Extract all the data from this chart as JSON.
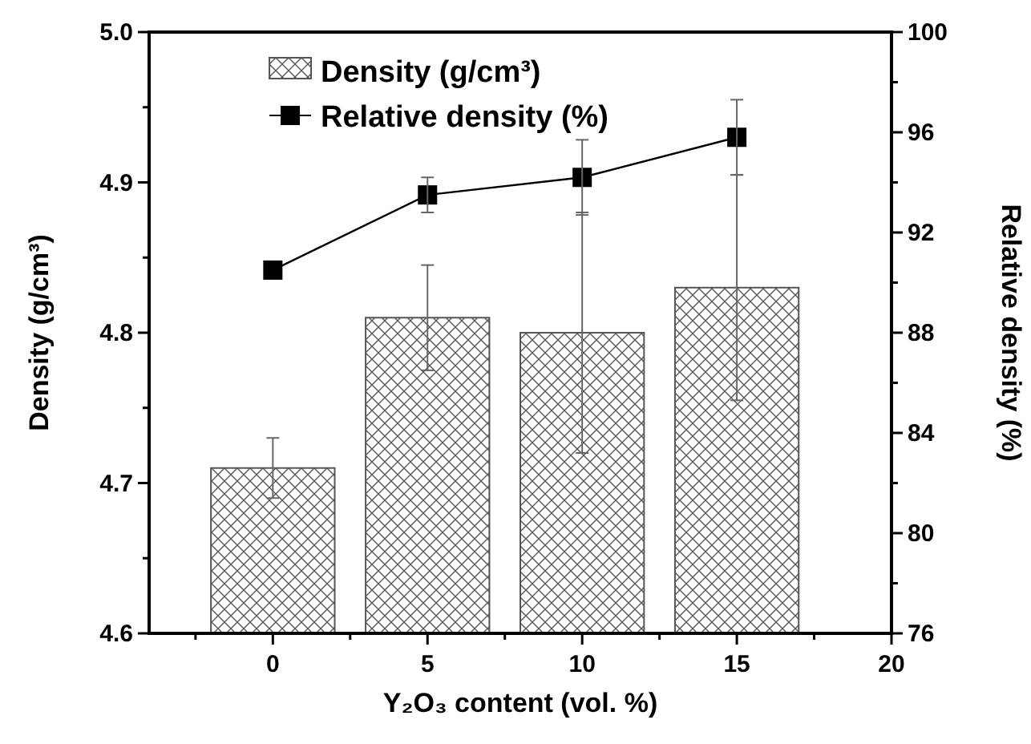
{
  "chart_data": {
    "type": "bar",
    "x": [
      0,
      5,
      10,
      15
    ],
    "series": [
      {
        "name": "Density (g/cm³)",
        "color": "#555555",
        "values": [
          4.71,
          4.81,
          4.8,
          4.83
        ],
        "errors": [
          0.02,
          0.035,
          0.08,
          0.075
        ]
      },
      {
        "name": "Relative density (%)",
        "type": "line",
        "axis": "y2",
        "color": "#000000",
        "values": [
          90.5,
          93.5,
          94.2,
          95.8
        ],
        "errors": [
          null,
          0.7,
          1.5,
          1.5
        ]
      }
    ],
    "xlabel": "Y₂O₃ content (vol. %)",
    "ylabel": "Density (g/cm³)",
    "y2label": "Relative density (%)",
    "xlim": [
      -4,
      20
    ],
    "xticks": [
      {
        "value": -2.5,
        "label": null
      },
      0,
      {
        "value": 2.5,
        "label": null
      },
      5,
      {
        "value": 7.5,
        "label": null
      },
      10,
      {
        "value": 12.5,
        "label": null
      },
      15,
      {
        "value": 17.5,
        "label": null
      },
      20
    ],
    "ylim": [
      4.6,
      5.0
    ],
    "yticks": [
      4.6,
      {
        "value": 4.65,
        "label": null
      },
      4.7,
      {
        "value": 4.75,
        "label": null
      },
      4.8,
      {
        "value": 4.85,
        "label": null
      },
      4.9,
      {
        "value": 4.95,
        "label": null
      },
      {
        "value": 5,
        "label": "5.0"
      }
    ],
    "y2lim": [
      76,
      100
    ],
    "y2ticks": [
      76,
      {
        "value": 78,
        "label": null
      },
      80,
      {
        "value": 82,
        "label": null
      },
      84,
      {
        "value": 86,
        "label": null
      },
      88,
      {
        "value": 90,
        "label": null
      },
      92,
      {
        "value": 94,
        "label": null
      },
      96,
      {
        "value": 98,
        "label": null
      },
      100
    ],
    "marker": "square",
    "line_style": "solid",
    "legend": "top left",
    "grid": false
  }
}
